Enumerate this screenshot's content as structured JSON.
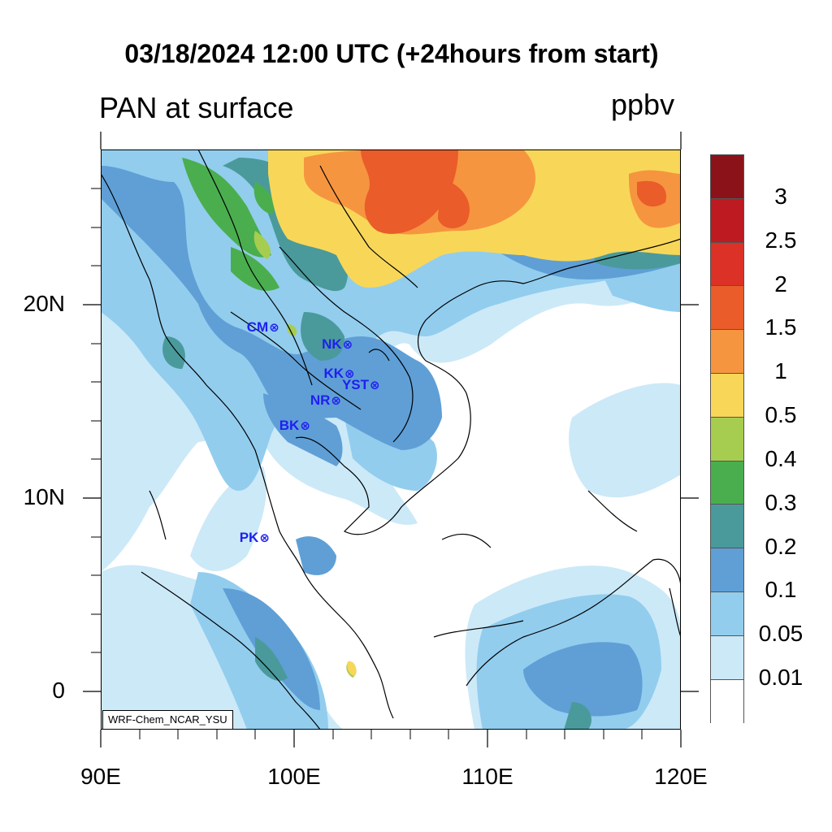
{
  "title": "03/18/2024 12:00 UTC (+24hours from start)",
  "variable_label": "PAN at surface",
  "units": "ppbv",
  "credit": "WRF-Chem_NCAR_YSU",
  "x_ticks": [
    {
      "label": "90E",
      "lon": 90
    },
    {
      "label": "100E",
      "lon": 100
    },
    {
      "label": "110E",
      "lon": 110
    },
    {
      "label": "120E",
      "lon": 120
    }
  ],
  "y_ticks": [
    {
      "label": "20N",
      "lat": 20
    },
    {
      "label": "10N",
      "lat": 10
    },
    {
      "label": "0",
      "lat": 0
    }
  ],
  "extent": {
    "lon": [
      90,
      120
    ],
    "lat": [
      -2,
      28
    ]
  },
  "colorbar": {
    "labels": [
      "3",
      "2.5",
      "2",
      "1.5",
      "1",
      "0.5",
      "0.4",
      "0.3",
      "0.2",
      "0.1",
      "0.05",
      "0.01"
    ],
    "colors": [
      "#8b1219",
      "#bd1a22",
      "#db3127",
      "#ea5c2a",
      "#f6953f",
      "#f8d758",
      "#a6cd4f",
      "#4aae4e",
      "#4a9a9c",
      "#5f9fd6",
      "#92cdee",
      "#cce9f8",
      "#ffffff"
    ]
  },
  "stations": [
    {
      "name": "CM",
      "lon": 98.9,
      "lat": 18.8
    },
    {
      "name": "NK",
      "lon": 102.7,
      "lat": 17.9
    },
    {
      "name": "KK",
      "lon": 102.8,
      "lat": 16.4
    },
    {
      "name": "YST",
      "lon": 104.1,
      "lat": 15.8
    },
    {
      "name": "NR",
      "lon": 102.1,
      "lat": 15.0
    },
    {
      "name": "BK",
      "lon": 100.5,
      "lat": 13.7
    },
    {
      "name": "PK",
      "lon": 98.4,
      "lat": 7.9
    }
  ],
  "station_symbol": "⊗"
}
